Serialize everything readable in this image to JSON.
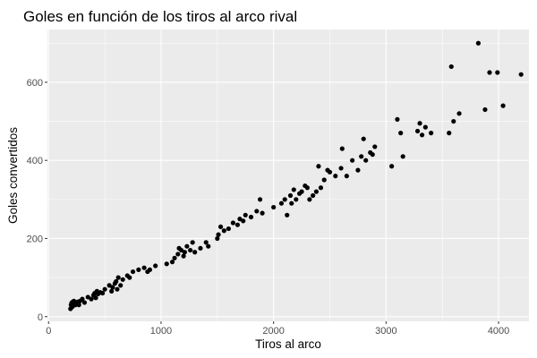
{
  "chart_data": {
    "type": "scatter",
    "title": "Goles en función de los tiros al arco rival",
    "xlabel": "Tiros al arco",
    "ylabel": "Goles convertidos",
    "xlim": [
      -10,
      4270
    ],
    "ylim": [
      -12,
      735
    ],
    "x_ticks": [
      0,
      1000,
      2000,
      3000,
      4000
    ],
    "y_ticks": [
      0,
      200,
      400,
      600
    ],
    "x_tick_labels": [
      "0",
      "1000",
      "2000",
      "3000",
      "4000"
    ],
    "y_tick_labels": [
      "0",
      "200",
      "400",
      "600"
    ],
    "grid": true,
    "legend": "none",
    "colors": {
      "panel": "#ebebeb",
      "grid": "#ffffff",
      "points": "#000000",
      "ticks": "#333333"
    },
    "points": [
      [
        195,
        20
      ],
      [
        200,
        30
      ],
      [
        205,
        35
      ],
      [
        210,
        25
      ],
      [
        215,
        38
      ],
      [
        220,
        28
      ],
      [
        225,
        40
      ],
      [
        230,
        33
      ],
      [
        240,
        30
      ],
      [
        250,
        35
      ],
      [
        260,
        38
      ],
      [
        270,
        30
      ],
      [
        280,
        40
      ],
      [
        300,
        45
      ],
      [
        320,
        36
      ],
      [
        350,
        50
      ],
      [
        380,
        45
      ],
      [
        400,
        55
      ],
      [
        410,
        60
      ],
      [
        420,
        48
      ],
      [
        430,
        65
      ],
      [
        440,
        58
      ],
      [
        460,
        62
      ],
      [
        480,
        60
      ],
      [
        500,
        70
      ],
      [
        540,
        80
      ],
      [
        560,
        65
      ],
      [
        570,
        75
      ],
      [
        590,
        85
      ],
      [
        600,
        90
      ],
      [
        610,
        70
      ],
      [
        620,
        100
      ],
      [
        640,
        80
      ],
      [
        660,
        95
      ],
      [
        700,
        105
      ],
      [
        720,
        100
      ],
      [
        750,
        115
      ],
      [
        800,
        120
      ],
      [
        850,
        125
      ],
      [
        880,
        115
      ],
      [
        900,
        120
      ],
      [
        950,
        130
      ],
      [
        1050,
        135
      ],
      [
        1100,
        140
      ],
      [
        1120,
        150
      ],
      [
        1150,
        160
      ],
      [
        1160,
        175
      ],
      [
        1180,
        170
      ],
      [
        1200,
        155
      ],
      [
        1210,
        165
      ],
      [
        1230,
        180
      ],
      [
        1260,
        170
      ],
      [
        1280,
        190
      ],
      [
        1300,
        165
      ],
      [
        1350,
        175
      ],
      [
        1400,
        190
      ],
      [
        1420,
        180
      ],
      [
        1500,
        200
      ],
      [
        1510,
        210
      ],
      [
        1530,
        230
      ],
      [
        1560,
        220
      ],
      [
        1600,
        225
      ],
      [
        1640,
        240
      ],
      [
        1680,
        235
      ],
      [
        1700,
        250
      ],
      [
        1730,
        245
      ],
      [
        1750,
        260
      ],
      [
        1800,
        255
      ],
      [
        1850,
        270
      ],
      [
        1880,
        300
      ],
      [
        1900,
        265
      ],
      [
        2000,
        280
      ],
      [
        2070,
        290
      ],
      [
        2100,
        300
      ],
      [
        2120,
        260
      ],
      [
        2150,
        310
      ],
      [
        2160,
        290
      ],
      [
        2180,
        325
      ],
      [
        2200,
        300
      ],
      [
        2230,
        315
      ],
      [
        2250,
        320
      ],
      [
        2280,
        335
      ],
      [
        2300,
        330
      ],
      [
        2320,
        300
      ],
      [
        2350,
        310
      ],
      [
        2380,
        320
      ],
      [
        2400,
        385
      ],
      [
        2420,
        330
      ],
      [
        2450,
        350
      ],
      [
        2480,
        375
      ],
      [
        2500,
        370
      ],
      [
        2550,
        360
      ],
      [
        2600,
        380
      ],
      [
        2610,
        430
      ],
      [
        2650,
        360
      ],
      [
        2700,
        400
      ],
      [
        2750,
        375
      ],
      [
        2780,
        410
      ],
      [
        2800,
        455
      ],
      [
        2820,
        400
      ],
      [
        2860,
        420
      ],
      [
        2880,
        415
      ],
      [
        2900,
        435
      ],
      [
        3050,
        385
      ],
      [
        3100,
        505
      ],
      [
        3130,
        470
      ],
      [
        3150,
        410
      ],
      [
        3280,
        475
      ],
      [
        3300,
        495
      ],
      [
        3320,
        465
      ],
      [
        3350,
        485
      ],
      [
        3400,
        470
      ],
      [
        3560,
        470
      ],
      [
        3580,
        640
      ],
      [
        3600,
        500
      ],
      [
        3650,
        520
      ],
      [
        3820,
        700
      ],
      [
        3880,
        530
      ],
      [
        3920,
        625
      ],
      [
        3990,
        625
      ],
      [
        4040,
        540
      ],
      [
        4200,
        620
      ]
    ]
  }
}
